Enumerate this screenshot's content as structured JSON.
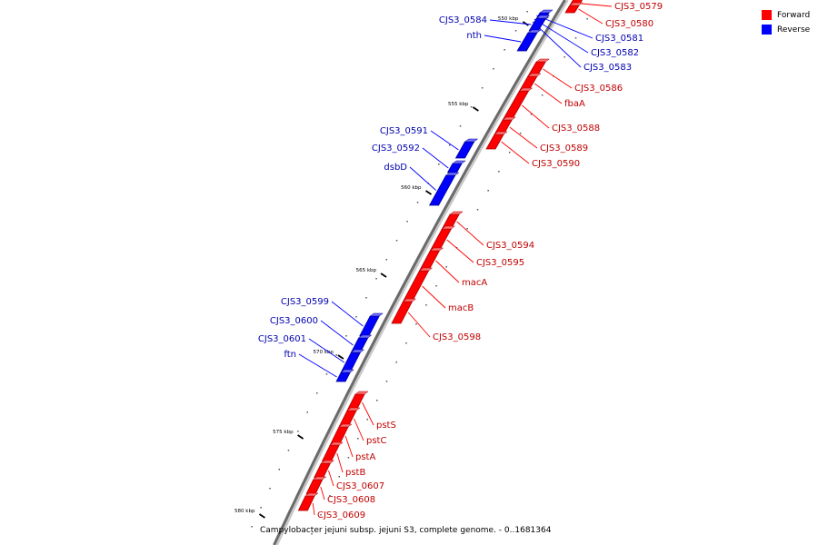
{
  "legend": {
    "forward_label": "Forward",
    "reverse_label": "Reverse",
    "forward_color": "#ff0000",
    "reverse_color": "#0000ff"
  },
  "caption": "Campylobacter jejuni subsp. jejuni S3, complete genome. - 0..1681364",
  "map": {
    "scale_labels": [
      "550 kbp",
      "555 kbp",
      "560 kbp",
      "565 kbp",
      "570 kbp",
      "575 kbp",
      "580 kbp"
    ],
    "genes": [
      {
        "name": "CJS3_0579",
        "strand": "forward"
      },
      {
        "name": "CJS3_0580",
        "strand": "forward"
      },
      {
        "name": "CJS3_0581",
        "strand": "reverse"
      },
      {
        "name": "CJS3_0582",
        "strand": "reverse"
      },
      {
        "name": "CJS3_0583",
        "strand": "reverse"
      },
      {
        "name": "CJS3_0584",
        "strand": "reverse"
      },
      {
        "name": "nth",
        "strand": "reverse"
      },
      {
        "name": "CJS3_0586",
        "strand": "forward"
      },
      {
        "name": "fbaA",
        "strand": "forward"
      },
      {
        "name": "CJS3_0588",
        "strand": "forward"
      },
      {
        "name": "CJS3_0589",
        "strand": "forward"
      },
      {
        "name": "CJS3_0590",
        "strand": "forward"
      },
      {
        "name": "CJS3_0591",
        "strand": "reverse"
      },
      {
        "name": "CJS3_0592",
        "strand": "reverse"
      },
      {
        "name": "dsbD",
        "strand": "reverse"
      },
      {
        "name": "CJS3_0594",
        "strand": "forward"
      },
      {
        "name": "CJS3_0595",
        "strand": "forward"
      },
      {
        "name": "macA",
        "strand": "forward"
      },
      {
        "name": "macB",
        "strand": "forward"
      },
      {
        "name": "CJS3_0598",
        "strand": "forward"
      },
      {
        "name": "CJS3_0599",
        "strand": "reverse"
      },
      {
        "name": "CJS3_0600",
        "strand": "reverse"
      },
      {
        "name": "CJS3_0601",
        "strand": "reverse"
      },
      {
        "name": "ftn",
        "strand": "reverse"
      },
      {
        "name": "pstS",
        "strand": "forward"
      },
      {
        "name": "pstC",
        "strand": "forward"
      },
      {
        "name": "pstA",
        "strand": "forward"
      },
      {
        "name": "pstB",
        "strand": "forward"
      },
      {
        "name": "CJS3_0607",
        "strand": "forward"
      },
      {
        "name": "CJS3_0608",
        "strand": "forward"
      },
      {
        "name": "CJS3_0609",
        "strand": "forward"
      }
    ]
  }
}
